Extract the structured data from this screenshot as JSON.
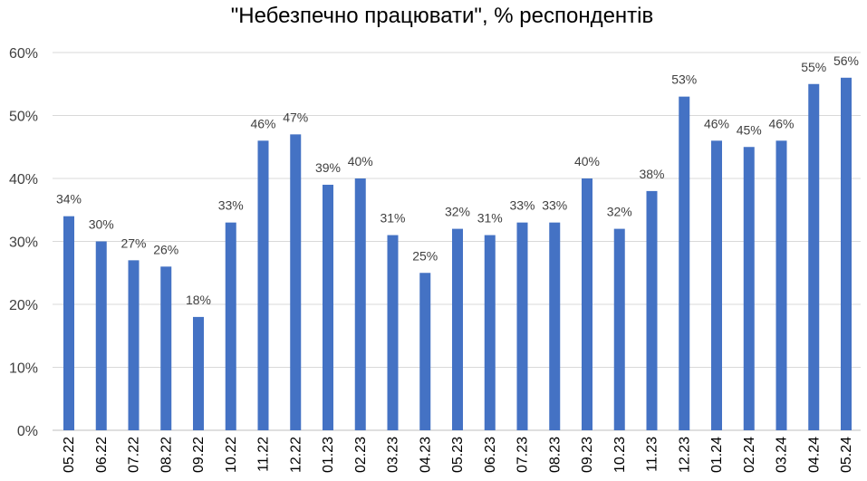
{
  "chart_data": {
    "type": "bar",
    "title": "\"Небезпечно працювати\", % респондентів",
    "categories": [
      "05.22",
      "06.22",
      "07.22",
      "08.22",
      "09.22",
      "10.22",
      "11.22",
      "12.22",
      "01.23",
      "02.23",
      "03.23",
      "04.23",
      "05.23",
      "06.23",
      "07.23",
      "08.23",
      "09.23",
      "10.23",
      "11.23",
      "12.23",
      "01.24",
      "02.24",
      "03.24",
      "04.24",
      "05.24"
    ],
    "values": [
      34,
      30,
      27,
      26,
      18,
      33,
      46,
      47,
      39,
      40,
      31,
      25,
      32,
      31,
      33,
      33,
      40,
      32,
      38,
      53,
      46,
      45,
      46,
      55,
      56
    ],
    "value_labels": [
      "34%",
      "30%",
      "27%",
      "26%",
      "18%",
      "33%",
      "46%",
      "47%",
      "39%",
      "40%",
      "31%",
      "25%",
      "32%",
      "31%",
      "33%",
      "33%",
      "40%",
      "32%",
      "38%",
      "53%",
      "46%",
      "45%",
      "46%",
      "55%",
      "56%"
    ],
    "yticks": [
      "0%",
      "10%",
      "20%",
      "30%",
      "40%",
      "50%",
      "60%"
    ],
    "ylim": [
      0,
      60
    ],
    "bar_color": "#4472C4",
    "grid": true,
    "legend": "none",
    "xlabel": "",
    "ylabel": ""
  }
}
